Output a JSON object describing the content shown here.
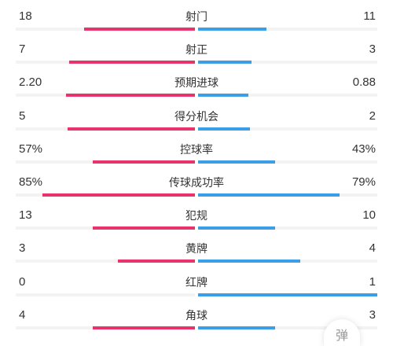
{
  "colors": {
    "home": "#e8336d",
    "away": "#3d9ee8",
    "track": "#f3f3f3"
  },
  "stats": [
    {
      "label": "射门",
      "home": "18",
      "away": "11",
      "home_ratio": 0.62,
      "away_ratio": 0.38
    },
    {
      "label": "射正",
      "home": "7",
      "away": "3",
      "home_ratio": 0.7,
      "away_ratio": 0.3
    },
    {
      "label": "预期进球",
      "home": "2.20",
      "away": "0.88",
      "home_ratio": 0.72,
      "away_ratio": 0.28
    },
    {
      "label": "得分机会",
      "home": "5",
      "away": "2",
      "home_ratio": 0.71,
      "away_ratio": 0.29
    },
    {
      "label": "控球率",
      "home": "57%",
      "away": "43%",
      "home_ratio": 0.57,
      "away_ratio": 0.43
    },
    {
      "label": "传球成功率",
      "home": "85%",
      "away": "79%",
      "home_ratio": 0.85,
      "away_ratio": 0.79
    },
    {
      "label": "犯规",
      "home": "13",
      "away": "10",
      "home_ratio": 0.57,
      "away_ratio": 0.43
    },
    {
      "label": "黄牌",
      "home": "3",
      "away": "4",
      "home_ratio": 0.43,
      "away_ratio": 0.57
    },
    {
      "label": "红牌",
      "home": "0",
      "away": "1",
      "home_ratio": 0.0,
      "away_ratio": 1.0
    },
    {
      "label": "角球",
      "home": "4",
      "away": "3",
      "home_ratio": 0.57,
      "away_ratio": 0.43
    }
  ],
  "barrage_button": {
    "label": "弹"
  }
}
